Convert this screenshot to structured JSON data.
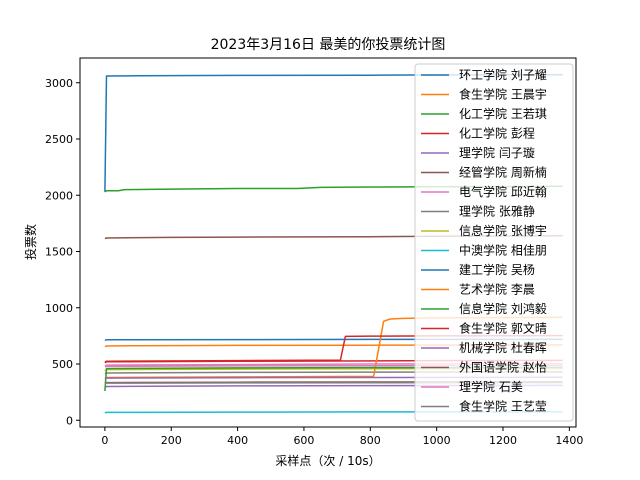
{
  "chart_data": {
    "type": "line",
    "title": "2023年3月16日 最美的你投票统计图",
    "xlabel": "采样点（次 / 10s）",
    "ylabel": "投票数",
    "xlim": [
      -75,
      1420
    ],
    "ylim": [
      -60,
      3220
    ],
    "xticks": [
      0,
      200,
      400,
      600,
      800,
      1000,
      1200,
      1400
    ],
    "yticks": [
      0,
      500,
      1000,
      1500,
      2000,
      2500,
      3000
    ],
    "legend_position": "top-right",
    "grid": false,
    "series": [
      {
        "name": "环工学院 刘子耀",
        "color": "#1f77b4",
        "x": [
          0,
          5,
          100,
          400,
          800,
          1000,
          1380
        ],
        "y": [
          2030,
          3060,
          3062,
          3065,
          3067,
          3070,
          3072
        ]
      },
      {
        "name": "食生学院 王晨宇",
        "color": "#ff7f0e",
        "x": [
          0,
          5,
          100,
          400,
          800,
          1000,
          1380
        ],
        "y": [
          655,
          660,
          663,
          665,
          667,
          668,
          670
        ]
      },
      {
        "name": "化工学院 王若琪",
        "color": "#2ca02c",
        "x": [
          0,
          5,
          40,
          60,
          200,
          400,
          580,
          650,
          800,
          1000,
          1380
        ],
        "y": [
          2030,
          2040,
          2040,
          2050,
          2055,
          2060,
          2060,
          2070,
          2073,
          2076,
          2080
        ]
      },
      {
        "name": "化工学院 彭程",
        "color": "#d62728",
        "x": [
          0,
          5,
          400,
          700,
          1000,
          1380
        ],
        "y": [
          510,
          520,
          524,
          527,
          530,
          532
        ]
      },
      {
        "name": "理学院 闫子璇",
        "color": "#9467bd",
        "x": [
          0,
          5,
          400,
          800,
          1380
        ],
        "y": [
          290,
          300,
          305,
          308,
          310
        ]
      },
      {
        "name": "经管学院 周新楠",
        "color": "#8c564b",
        "x": [
          0,
          5,
          200,
          400,
          800,
          1000,
          1380
        ],
        "y": [
          1615,
          1620,
          1625,
          1628,
          1632,
          1635,
          1640
        ]
      },
      {
        "name": "电气学院 邱近翰",
        "color": "#e377c2",
        "x": [
          0,
          5,
          400,
          800,
          1380
        ],
        "y": [
          480,
          490,
          495,
          500,
          502
        ]
      },
      {
        "name": "理学院 张雅静",
        "color": "#7f7f7f",
        "x": [
          0,
          5,
          400,
          800,
          1380
        ],
        "y": [
          415,
          420,
          425,
          428,
          430
        ]
      },
      {
        "name": "信息学院 张博宇",
        "color": "#bcbd22",
        "x": [
          0,
          5,
          400,
          800,
          1380
        ],
        "y": [
          440,
          450,
          455,
          458,
          460
        ]
      },
      {
        "name": "中澳学院 相佳朋",
        "color": "#17becf",
        "x": [
          0,
          5,
          400,
          800,
          1380
        ],
        "y": [
          65,
          70,
          72,
          74,
          75
        ]
      },
      {
        "name": "建工学院 吴杨",
        "color": "#1f77b4",
        "x": [
          0,
          5,
          400,
          800,
          1380
        ],
        "y": [
          710,
          715,
          717,
          719,
          720
        ]
      },
      {
        "name": "艺术学院 李晨",
        "color": "#ff7f0e",
        "x": [
          0,
          5,
          400,
          810,
          840,
          860,
          900,
          1000,
          1380
        ],
        "y": [
          370,
          380,
          385,
          390,
          880,
          900,
          905,
          910,
          915
        ]
      },
      {
        "name": "信息学院 刘鸿毅",
        "color": "#2ca02c",
        "x": [
          0,
          5,
          400,
          800,
          1380
        ],
        "y": [
          260,
          460,
          465,
          468,
          470
        ]
      },
      {
        "name": "食生学院 郭文晴",
        "color": "#d62728",
        "x": [
          0,
          5,
          400,
          710,
          725,
          800,
          1000,
          1380
        ],
        "y": [
          520,
          525,
          530,
          535,
          745,
          748,
          750,
          752
        ]
      },
      {
        "name": "机械学院 杜春晖",
        "color": "#9467bd",
        "x": [
          0,
          5,
          400,
          800,
          1380
        ],
        "y": [
          370,
          375,
          378,
          380,
          382
        ]
      },
      {
        "name": "外国语学院 赵怡",
        "color": "#8c564b",
        "x": [
          0,
          5,
          400,
          800,
          1380
        ],
        "y": [
          330,
          335,
          338,
          340,
          342
        ]
      },
      {
        "name": "理学院 石美",
        "color": "#e377c2",
        "x": [
          0,
          5,
          400,
          800,
          1380
        ],
        "y": [
          475,
          480,
          483,
          485,
          487
        ]
      },
      {
        "name": "食生学院 王艺莹",
        "color": "#7f7f7f",
        "x": [
          0,
          5,
          400,
          800,
          1380
        ],
        "y": [
          325,
          330,
          332,
          334,
          335
        ]
      }
    ]
  }
}
